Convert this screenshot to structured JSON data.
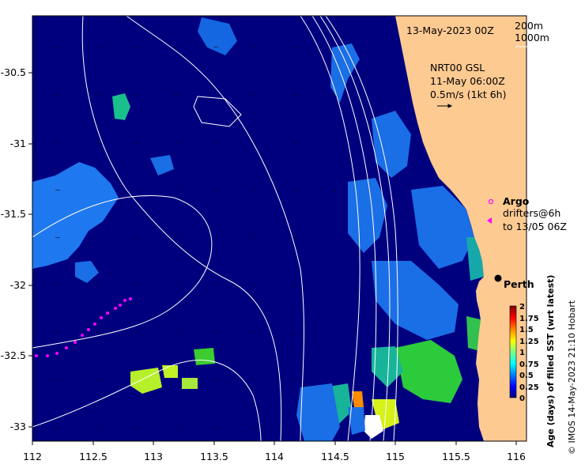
{
  "header": {
    "date": "13-May-2023 00Z",
    "isobath_1": "200m",
    "isobath_2": "1000m"
  },
  "current_legend": {
    "product": "NRT00 GSL",
    "time": "11-May 06:00Z",
    "scale": "0.5m/s (1kt 6h)"
  },
  "symbol_legend": {
    "argo": "Argo",
    "drifters_line1": "drifters@6h",
    "drifters_line2": "to 13/05 06Z"
  },
  "places": {
    "city": "Perth"
  },
  "colorbar": {
    "label": "Age (days) of filled SST (wrt latest)",
    "ticks": [
      "2",
      "1.75",
      "1.5",
      "1.25",
      "1",
      "0.75",
      "0.5",
      "0.25",
      "0"
    ],
    "colors": [
      "#00007f",
      "#0000ff",
      "#0080ff",
      "#00ffff",
      "#80ff80",
      "#ffff00",
      "#ff8000",
      "#ff0000",
      "#7f0000"
    ]
  },
  "credit": "© IMOS 14-May-2023 21:10 Hobart",
  "axes": {
    "x_ticks": [
      "112",
      "112.5",
      "113",
      "113.5",
      "114",
      "114.5",
      "115",
      "115.5",
      "116"
    ],
    "y_ticks": [
      "-30.5",
      "-31",
      "-31.5",
      "-32",
      "-32.5",
      "-33"
    ],
    "x_range": [
      112,
      116.2
    ],
    "y_range": [
      -30.1,
      -33.1
    ]
  },
  "colors": {
    "ocean": "#00007f",
    "land": "#fdca92",
    "isobath": "#ffffff",
    "drifter": "#ff00ff"
  }
}
